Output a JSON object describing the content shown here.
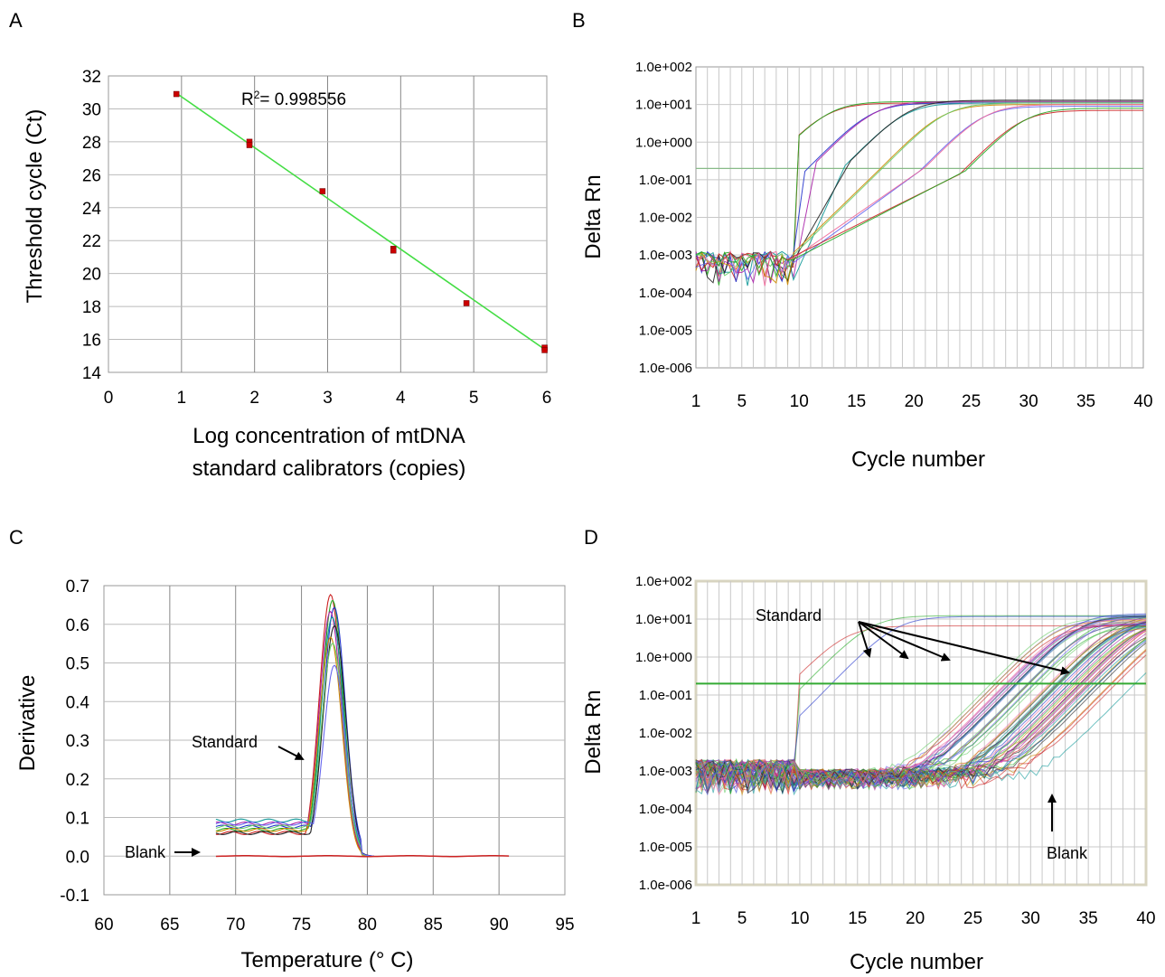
{
  "chart_data": [
    {
      "panel": "A",
      "type": "scatter",
      "xlabel": "Log concentration of mtDNA standard calibrators (copies)",
      "xlabel_lines": [
        "Log concentration of mtDNA",
        "standard calibrators (copies)"
      ],
      "ylabel": "Threshold cycle (Ct)",
      "xlim": [
        0,
        6
      ],
      "ylim": [
        14,
        32
      ],
      "xticks": [
        "0",
        "1",
        "2",
        "3",
        "4",
        "5",
        "6"
      ],
      "yticks": [
        "14",
        "16",
        "18",
        "20",
        "22",
        "24",
        "26",
        "28",
        "30",
        "32"
      ],
      "annotation": {
        "prefix": "R",
        "sup": "2",
        "text": "= 0.998556"
      },
      "points": [
        [
          0.93,
          30.9
        ],
        [
          1.93,
          28.0
        ],
        [
          1.93,
          27.8
        ],
        [
          2.93,
          25.0
        ],
        [
          3.9,
          21.5
        ],
        [
          3.9,
          21.4
        ],
        [
          4.9,
          18.2
        ],
        [
          5.97,
          15.5
        ],
        [
          5.97,
          15.35
        ]
      ],
      "fit_line": [
        [
          0.93,
          30.95
        ],
        [
          5.97,
          15.4
        ]
      ],
      "point_color": "#cc0000",
      "line_color": "#44dd44",
      "grid": true
    },
    {
      "panel": "B",
      "type": "line",
      "xlabel": "Cycle number",
      "ylabel": "Delta Rn",
      "y_scale": "log",
      "xlim": [
        1,
        40
      ],
      "ylim": [
        1e-06,
        100
      ],
      "xticks": [
        "1",
        "5",
        "10",
        "15",
        "20",
        "25",
        "30",
        "35",
        "40"
      ],
      "yticks": [
        "1.0e-006",
        "1.0e-005",
        "1.0e-004",
        "1.0e-003",
        "1.0e-002",
        "1.0e-001",
        "1.0e+000",
        "1.0e+001",
        "1.0e+002"
      ],
      "threshold": 0.2,
      "grid": true
    },
    {
      "panel": "C",
      "type": "line",
      "xlabel": "Temperature (° C)",
      "ylabel": "Derivative",
      "xlim": [
        60,
        95
      ],
      "ylim": [
        -0.1,
        0.7
      ],
      "xticks": [
        "60",
        "65",
        "70",
        "75",
        "80",
        "85",
        "90",
        "95"
      ],
      "yticks": [
        "-0.1",
        "0.0",
        "0.1",
        "0.2",
        "0.3",
        "0.4",
        "0.5",
        "0.6",
        "0.7"
      ],
      "annotations": [
        "Standard",
        "Blank"
      ],
      "grid": true
    },
    {
      "panel": "D",
      "type": "line",
      "xlabel": "Cycle number",
      "ylabel": "Delta Rn",
      "y_scale": "log",
      "xlim": [
        1,
        40
      ],
      "ylim": [
        1e-06,
        100
      ],
      "xticks": [
        "1",
        "5",
        "10",
        "15",
        "20",
        "25",
        "30",
        "35",
        "40"
      ],
      "yticks": [
        "1.0e-006",
        "1.0e-005",
        "1.0e-004",
        "1.0e-003",
        "1.0e-002",
        "1.0e-001",
        "1.0e+000",
        "1.0e+001",
        "1.0e+002"
      ],
      "threshold": 0.2,
      "annotations": [
        "Standard",
        "Blank"
      ],
      "grid": true
    }
  ],
  "colors": {
    "curves": [
      "#cc2222",
      "#22aa22",
      "#2233cc",
      "#aa22aa",
      "#119999",
      "#222222",
      "#cc8800",
      "#66cc66",
      "#6666ee",
      "#ee6699"
    ],
    "threshold": "#44aa44"
  }
}
